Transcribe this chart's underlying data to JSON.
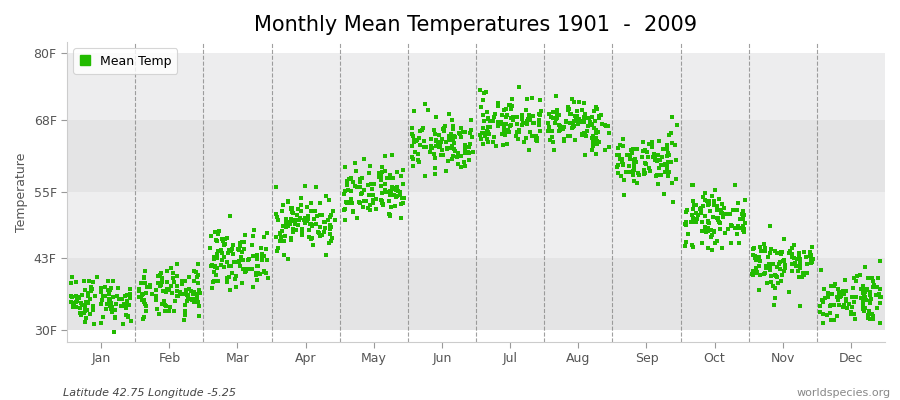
{
  "title": "Monthly Mean Temperatures 1901  -  2009",
  "ylabel": "Temperature",
  "xlabel_labels": [
    "Jan",
    "Feb",
    "Mar",
    "Apr",
    "May",
    "Jun",
    "Jul",
    "Aug",
    "Sep",
    "Oct",
    "Nov",
    "Dec"
  ],
  "ytick_labels": [
    "30F",
    "43F",
    "55F",
    "68F",
    "80F"
  ],
  "ytick_values": [
    30,
    43,
    55,
    68,
    80
  ],
  "ylim": [
    28,
    82
  ],
  "xlim": [
    0,
    12
  ],
  "dot_color": "#22bb00",
  "fig_bg_color": "#ffffff",
  "plot_bg_color": "#ffffff",
  "legend_label": "Mean Temp",
  "subtitle_left": "Latitude 42.75 Longitude -5.25",
  "subtitle_right": "worldspecies.org",
  "num_years": 109,
  "monthly_means": [
    35.5,
    36.5,
    43.0,
    49.5,
    54.5,
    63.5,
    67.5,
    67.0,
    60.5,
    50.0,
    42.0,
    36.0
  ],
  "monthly_stds": [
    2.2,
    2.3,
    2.5,
    2.5,
    2.8,
    2.5,
    2.5,
    2.3,
    2.5,
    2.3,
    2.5,
    2.5
  ],
  "title_fontsize": 15,
  "axis_fontsize": 9,
  "legend_fontsize": 9,
  "subtitle_fontsize": 8,
  "marker_size": 5,
  "band_colors": [
    "#f0f0f0",
    "#e8e8e8"
  ],
  "vline_color": "#888888",
  "tick_color": "#555555"
}
